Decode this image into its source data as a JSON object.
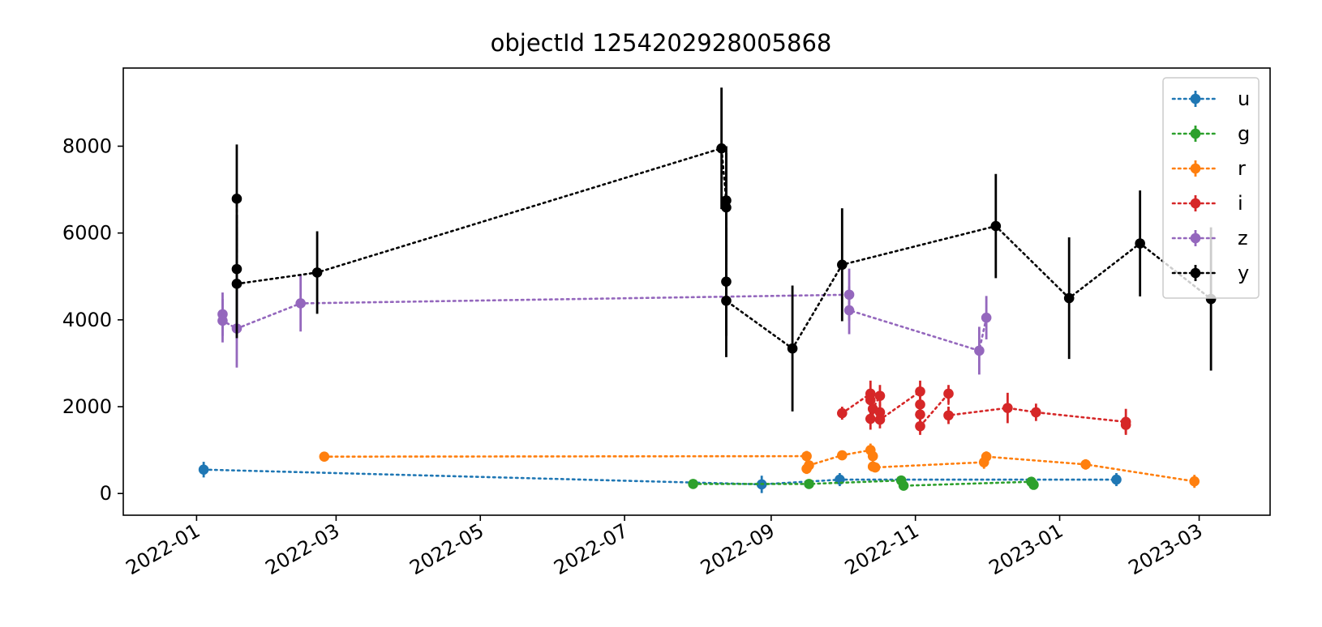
{
  "chart_data": {
    "type": "scatter",
    "title": "objectId 1254202928005868",
    "xlabel": "",
    "ylabel": "",
    "x_type": "date",
    "xlim": [
      "2021-12-01",
      "2023-03-31"
    ],
    "ylim": [
      -500,
      9800
    ],
    "x_ticks": [
      "2022-01",
      "2022-03",
      "2022-05",
      "2022-07",
      "2022-09",
      "2022-11",
      "2023-01",
      "2023-03"
    ],
    "x_tick_values": [
      "2022-01-01",
      "2022-03-01",
      "2022-05-01",
      "2022-07-01",
      "2022-09-01",
      "2022-11-01",
      "2023-01-01",
      "2023-03-01"
    ],
    "y_ticks": [
      0,
      2000,
      4000,
      6000,
      8000
    ],
    "grid": false,
    "legend_position": "top-right",
    "series": [
      {
        "name": "u",
        "color": "#1f77b4",
        "points": [
          {
            "x": "2022-01-04",
            "y": 550,
            "err": 180
          },
          {
            "x": "2022-08-28",
            "y": 210,
            "err": 200
          },
          {
            "x": "2022-09-30",
            "y": 320,
            "err": 150
          },
          {
            "x": "2023-01-25",
            "y": 320,
            "err": 150
          }
        ]
      },
      {
        "name": "g",
        "color": "#2ca02c",
        "points": [
          {
            "x": "2022-07-30",
            "y": 220,
            "err": 90
          },
          {
            "x": "2022-09-17",
            "y": 220,
            "err": 80
          },
          {
            "x": "2022-10-26",
            "y": 300,
            "err": 80
          },
          {
            "x": "2022-10-27",
            "y": 180,
            "err": 80
          },
          {
            "x": "2022-12-20",
            "y": 270,
            "err": 80
          },
          {
            "x": "2022-12-21",
            "y": 200,
            "err": 80
          }
        ]
      },
      {
        "name": "r",
        "color": "#ff7f0e",
        "points": [
          {
            "x": "2022-02-24",
            "y": 850,
            "err": 80
          },
          {
            "x": "2022-09-16",
            "y": 860,
            "err": 120
          },
          {
            "x": "2022-09-16",
            "y": 570,
            "err": 120
          },
          {
            "x": "2022-09-17",
            "y": 650,
            "err": 100
          },
          {
            "x": "2022-10-01",
            "y": 880,
            "err": 90
          },
          {
            "x": "2022-10-13",
            "y": 1000,
            "err": 150
          },
          {
            "x": "2022-10-14",
            "y": 860,
            "err": 100
          },
          {
            "x": "2022-10-14",
            "y": 620,
            "err": 100
          },
          {
            "x": "2022-10-15",
            "y": 600,
            "err": 100
          },
          {
            "x": "2022-11-30",
            "y": 720,
            "err": 150
          },
          {
            "x": "2022-12-01",
            "y": 850,
            "err": 120
          },
          {
            "x": "2023-01-12",
            "y": 670,
            "err": 120
          },
          {
            "x": "2023-02-27",
            "y": 280,
            "err": 150
          }
        ]
      },
      {
        "name": "i",
        "color": "#d62728",
        "points": [
          {
            "x": "2022-10-01",
            "y": 1850,
            "err": 150
          },
          {
            "x": "2022-10-13",
            "y": 2300,
            "err": 300
          },
          {
            "x": "2022-10-13",
            "y": 2150,
            "err": 250
          },
          {
            "x": "2022-10-13",
            "y": 1720,
            "err": 250
          },
          {
            "x": "2022-10-14",
            "y": 1950,
            "err": 250
          },
          {
            "x": "2022-10-17",
            "y": 2250,
            "err": 250
          },
          {
            "x": "2022-10-17",
            "y": 1870,
            "err": 200
          },
          {
            "x": "2022-10-17",
            "y": 1700,
            "err": 200
          },
          {
            "x": "2022-11-03",
            "y": 2350,
            "err": 250
          },
          {
            "x": "2022-11-03",
            "y": 2050,
            "err": 250
          },
          {
            "x": "2022-11-03",
            "y": 1820,
            "err": 250
          },
          {
            "x": "2022-11-03",
            "y": 1550,
            "err": 200
          },
          {
            "x": "2022-11-15",
            "y": 2300,
            "err": 200
          },
          {
            "x": "2022-11-15",
            "y": 1800,
            "err": 200
          },
          {
            "x": "2022-12-10",
            "y": 1970,
            "err": 350
          },
          {
            "x": "2022-12-22",
            "y": 1870,
            "err": 200
          },
          {
            "x": "2023-01-29",
            "y": 1650,
            "err": 300
          },
          {
            "x": "2023-01-29",
            "y": 1580,
            "err": 200
          }
        ]
      },
      {
        "name": "z",
        "color": "#9467bd",
        "points": [
          {
            "x": "2022-01-12",
            "y": 4130,
            "err": 500
          },
          {
            "x": "2022-01-12",
            "y": 3980,
            "err": 500
          },
          {
            "x": "2022-01-18",
            "y": 3800,
            "err": 900
          },
          {
            "x": "2022-02-14",
            "y": 4380,
            "err": 650
          },
          {
            "x": "2022-10-04",
            "y": 4580,
            "err": 600
          },
          {
            "x": "2022-10-04",
            "y": 4220,
            "err": 550
          },
          {
            "x": "2022-11-28",
            "y": 3290,
            "err": 550
          },
          {
            "x": "2022-12-01",
            "y": 4050,
            "err": 500
          }
        ]
      },
      {
        "name": "y",
        "color": "#000000",
        "points": [
          {
            "x": "2022-01-18",
            "y": 6790,
            "err": 1250
          },
          {
            "x": "2022-01-18",
            "y": 5170,
            "err": 1250
          },
          {
            "x": "2022-01-18",
            "y": 4830,
            "err": 1250
          },
          {
            "x": "2022-02-21",
            "y": 5090,
            "err": 950
          },
          {
            "x": "2022-08-11",
            "y": 7950,
            "err": 1400
          },
          {
            "x": "2022-08-13",
            "y": 6750,
            "err": 1250
          },
          {
            "x": "2022-08-13",
            "y": 6590,
            "err": 1250
          },
          {
            "x": "2022-08-13",
            "y": 4880,
            "err": 1250
          },
          {
            "x": "2022-08-13",
            "y": 4440,
            "err": 1300
          },
          {
            "x": "2022-09-10",
            "y": 3340,
            "err": 1450
          },
          {
            "x": "2022-10-01",
            "y": 5270,
            "err": 1300
          },
          {
            "x": "2022-12-05",
            "y": 6160,
            "err": 1200
          },
          {
            "x": "2023-01-05",
            "y": 4500,
            "err": 1400
          },
          {
            "x": "2023-02-04",
            "y": 5760,
            "err": 1220
          },
          {
            "x": "2023-03-06",
            "y": 4480,
            "err": 1650
          }
        ]
      }
    ]
  }
}
